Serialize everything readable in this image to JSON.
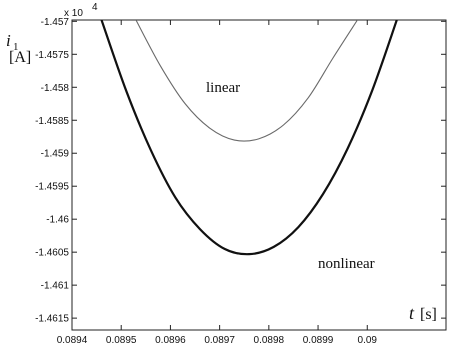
{
  "chart_data": {
    "type": "line",
    "ylabel_symbol": "i",
    "ylabel_subscript": "1",
    "ylabel_unit": "[A]",
    "xlabel_symbol": "t",
    "xlabel_unit": "[s]",
    "exponent_label": "x 10",
    "exponent_power": "4",
    "xlim": [
      0.0894,
      0.09016
    ],
    "ylim": [
      -1.46168,
      -1.45698
    ],
    "grid": false,
    "x_ticks": [
      0.0894,
      0.0895,
      0.0896,
      0.0897,
      0.0898,
      0.0899,
      0.09
    ],
    "x_tick_labels": [
      "0.0894",
      "0.0895",
      "0.0896",
      "0.0897",
      "0.0898",
      "0.0899",
      "0.09"
    ],
    "y_ticks": [
      -1.457,
      -1.4575,
      -1.458,
      -1.4585,
      -1.459,
      -1.4595,
      -1.46,
      -1.4605,
      -1.461,
      -1.4615
    ],
    "y_tick_labels": [
      "-1.457",
      "-1.4575",
      "-1.458",
      "-1.4585",
      "-1.459",
      "-1.4595",
      "-1.46",
      "-1.4605",
      "-1.461",
      "-1.4615"
    ],
    "series": [
      {
        "name": "linear",
        "color": "#6a6a6a",
        "x": [
          0.08953,
          0.08958,
          0.08963,
          0.08968,
          0.08973,
          0.08978,
          0.08983,
          0.08988,
          0.08993,
          0.08998
        ],
        "y": [
          -1.45698,
          -1.45768,
          -1.45825,
          -1.45862,
          -1.4588,
          -1.45878,
          -1.45857,
          -1.45816,
          -1.45756,
          -1.45698
        ]
      },
      {
        "name": "nonlinear",
        "color": "#111111",
        "x": [
          0.08946,
          0.08951,
          0.08956,
          0.08961,
          0.08966,
          0.08971,
          0.08976,
          0.08981,
          0.08986,
          0.08991,
          0.08996,
          0.09001,
          0.09006
        ],
        "y": [
          -1.45698,
          -1.45805,
          -1.45895,
          -1.45967,
          -1.46015,
          -1.46045,
          -1.46053,
          -1.46042,
          -1.46012,
          -1.45962,
          -1.45893,
          -1.45805,
          -1.45698
        ]
      }
    ]
  }
}
